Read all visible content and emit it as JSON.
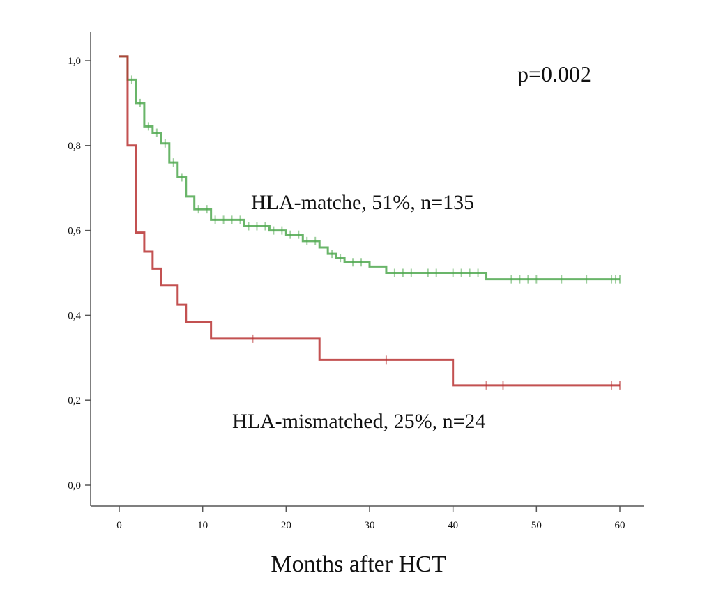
{
  "chart_data": {
    "type": "line",
    "subtype": "kaplan-meier",
    "title": "",
    "xlabel": "Months after HCT",
    "ylabel": "",
    "xlim": [
      -3,
      63
    ],
    "ylim": [
      -0.05,
      1.07
    ],
    "x_ticks": [
      0,
      10,
      20,
      30,
      40,
      50,
      60
    ],
    "x_tick_labels": [
      "0",
      "10",
      "20",
      "30",
      "40",
      "50",
      "60"
    ],
    "y_ticks": [
      0.0,
      0.2,
      0.4,
      0.6,
      0.8,
      1.0
    ],
    "y_tick_labels": [
      "0,0",
      "0,2",
      "0,4",
      "0,6",
      "0,8",
      "1,0"
    ],
    "grid": false,
    "annotations": {
      "p_value": "p=0.002",
      "matched_label": "HLA-matche, 51%, n=135",
      "mismatched_label": "HLA-mismatched, 25%, n=24"
    },
    "series": [
      {
        "name": "HLA-matche",
        "color": "#4fa84f",
        "steps": [
          [
            0,
            1.01
          ],
          [
            1,
            0.955
          ],
          [
            2,
            0.9
          ],
          [
            3,
            0.845
          ],
          [
            4,
            0.83
          ],
          [
            5,
            0.805
          ],
          [
            6,
            0.76
          ],
          [
            7,
            0.725
          ],
          [
            8,
            0.68
          ],
          [
            9,
            0.65
          ],
          [
            11,
            0.625
          ],
          [
            15,
            0.61
          ],
          [
            18,
            0.6
          ],
          [
            20,
            0.59
          ],
          [
            22,
            0.575
          ],
          [
            24,
            0.56
          ],
          [
            25,
            0.545
          ],
          [
            26,
            0.535
          ],
          [
            27,
            0.525
          ],
          [
            30,
            0.515
          ],
          [
            32,
            0.5
          ],
          [
            44,
            0.485
          ],
          [
            60,
            0.485
          ]
        ],
        "censor_x": [
          1.5,
          2.5,
          3.5,
          4.5,
          5.5,
          6.5,
          7.5,
          9.5,
          10.5,
          11.5,
          12.5,
          13.5,
          14.5,
          15.5,
          16.5,
          17.5,
          18.5,
          19.5,
          20.5,
          21.5,
          22.5,
          23.5,
          25.5,
          26.5,
          28,
          29,
          33,
          34,
          35,
          37,
          38,
          40,
          41,
          42,
          43,
          47,
          48,
          49,
          50,
          53,
          56,
          59,
          59.5,
          60
        ]
      },
      {
        "name": "HLA-mismatched",
        "color": "#b83232",
        "steps": [
          [
            0,
            1.01
          ],
          [
            1,
            0.8
          ],
          [
            2,
            0.595
          ],
          [
            3,
            0.55
          ],
          [
            4,
            0.51
          ],
          [
            5,
            0.47
          ],
          [
            7,
            0.425
          ],
          [
            8,
            0.385
          ],
          [
            11,
            0.345
          ],
          [
            24,
            0.295
          ],
          [
            40,
            0.235
          ],
          [
            60,
            0.235
          ]
        ],
        "censor_x": [
          16,
          32,
          44,
          46,
          59,
          60
        ]
      }
    ]
  }
}
